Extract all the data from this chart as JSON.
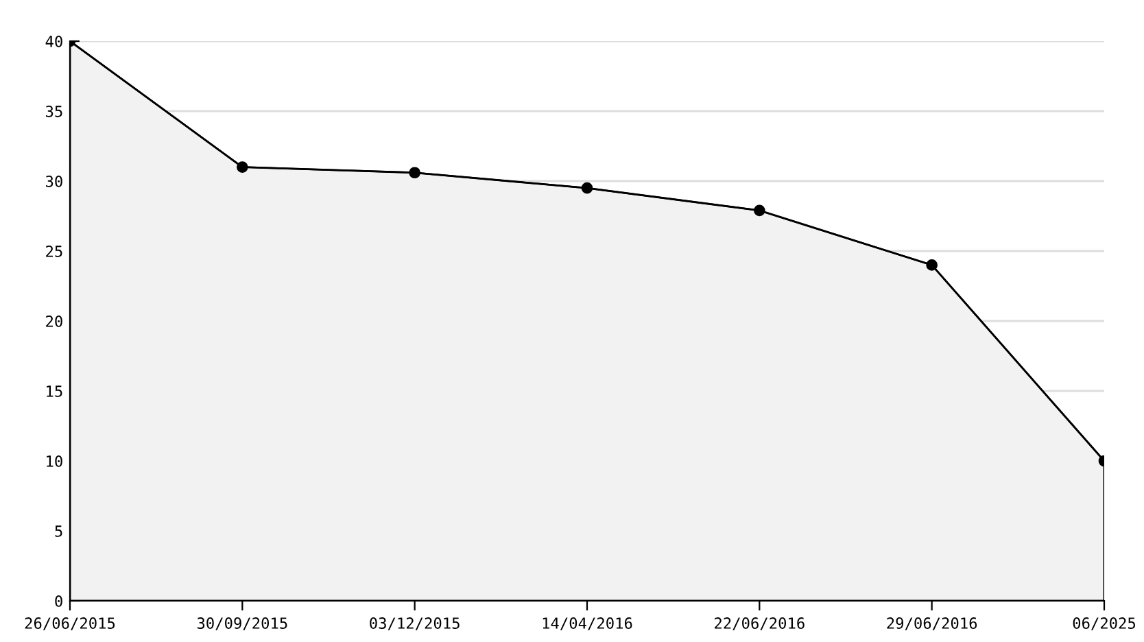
{
  "chart_data": {
    "type": "area",
    "categories": [
      "26/06/2015",
      "30/09/2015",
      "03/12/2015",
      "14/04/2016",
      "22/06/2016",
      "29/06/2016",
      "06/2025"
    ],
    "series": [
      {
        "color": "#f2f2f2",
        "values": [
          40,
          31,
          30.6,
          29.5,
          27.9,
          24,
          10
        ]
      }
    ],
    "ylim": [
      0,
      40
    ],
    "yticks": [
      0,
      5,
      10,
      15,
      20,
      25,
      30,
      35,
      40
    ],
    "grid": "y",
    "marker": "circle",
    "line_style": "solid",
    "legend": false
  }
}
